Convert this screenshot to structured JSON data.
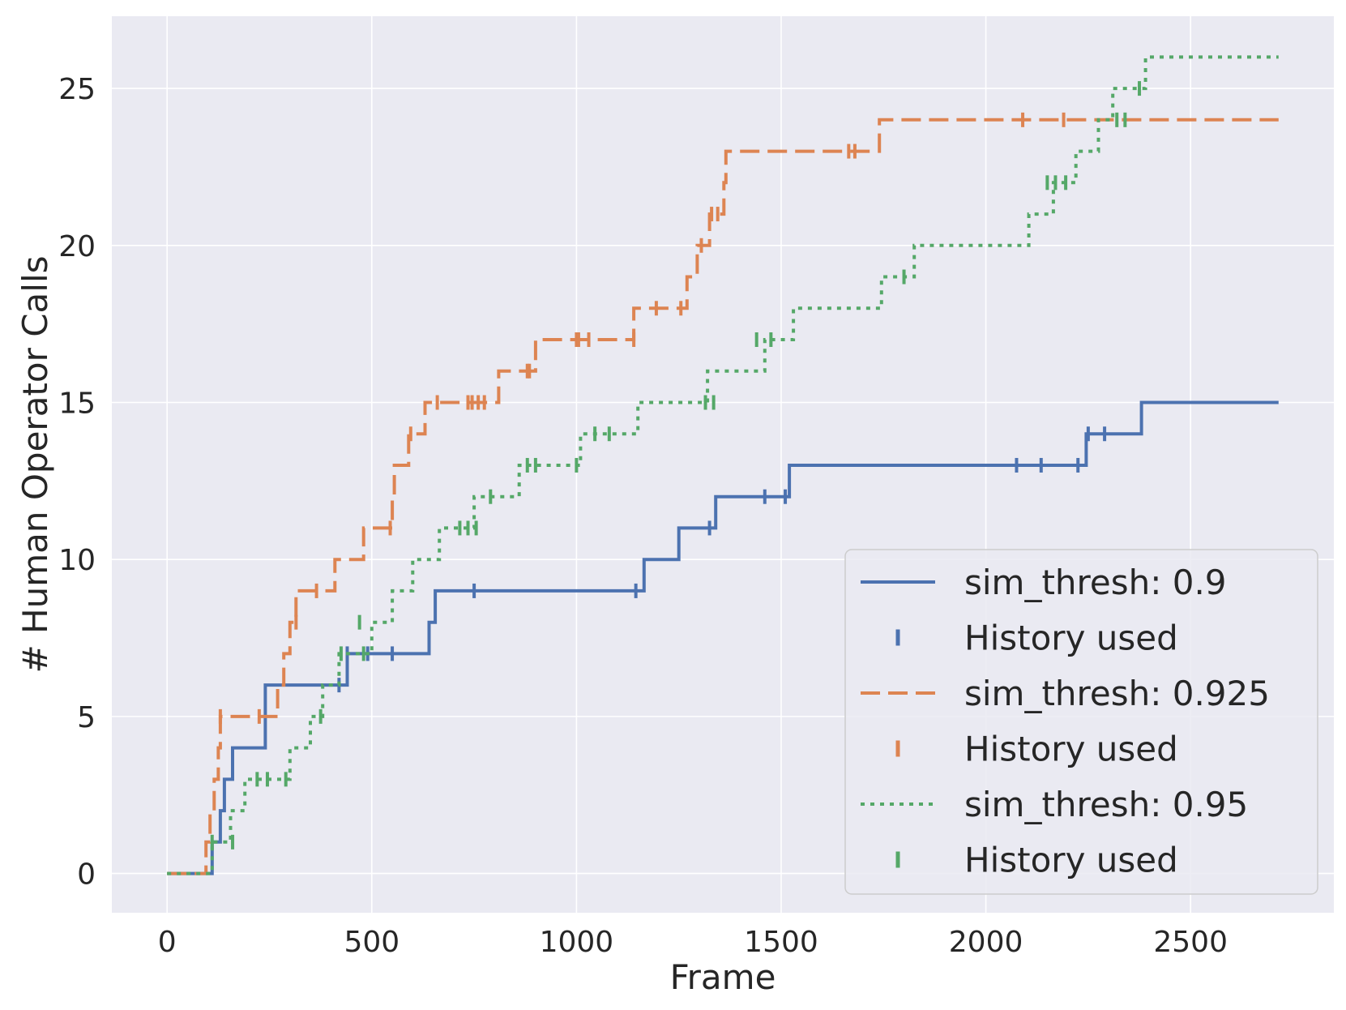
{
  "chart_data": {
    "type": "line",
    "step": true,
    "xlabel": "Frame",
    "ylabel": "# Human Operator Calls",
    "xlim": [
      -135,
      2850
    ],
    "ylim": [
      -1.25,
      27.3
    ],
    "xticks": [
      0,
      500,
      1000,
      1500,
      2000,
      2500
    ],
    "yticks": [
      0,
      5,
      10,
      15,
      20,
      25
    ],
    "xtick_labels": [
      "0",
      "500",
      "1000",
      "1500",
      "2000",
      "2500"
    ],
    "ytick_labels": [
      "0",
      "5",
      "10",
      "15",
      "20",
      "25"
    ],
    "grid": true,
    "legend_position": "lower-right",
    "background": "#eaeaf2",
    "series": [
      {
        "name": "sim_thresh: 0.9",
        "color": "#4c72b0",
        "dash": "solid",
        "points": [
          [
            0,
            0
          ],
          [
            110,
            0
          ],
          [
            110,
            1
          ],
          [
            130,
            1
          ],
          [
            130,
            2
          ],
          [
            140,
            2
          ],
          [
            140,
            3
          ],
          [
            160,
            3
          ],
          [
            160,
            4
          ],
          [
            240,
            4
          ],
          [
            240,
            6
          ],
          [
            440,
            6
          ],
          [
            440,
            7
          ],
          [
            640,
            7
          ],
          [
            640,
            8
          ],
          [
            655,
            8
          ],
          [
            655,
            9
          ],
          [
            1165,
            9
          ],
          [
            1165,
            10
          ],
          [
            1250,
            10
          ],
          [
            1250,
            11
          ],
          [
            1340,
            11
          ],
          [
            1340,
            12
          ],
          [
            1520,
            12
          ],
          [
            1520,
            13
          ],
          [
            2245,
            13
          ],
          [
            2245,
            14
          ],
          [
            2380,
            14
          ],
          [
            2380,
            15
          ],
          [
            2715,
            15
          ]
        ],
        "markers": [
          [
            420,
            6
          ],
          [
            440,
            7
          ],
          [
            490,
            7
          ],
          [
            550,
            7
          ],
          [
            750,
            9
          ],
          [
            1145,
            9
          ],
          [
            1325,
            11
          ],
          [
            1460,
            12
          ],
          [
            1510,
            12
          ],
          [
            2075,
            13
          ],
          [
            2135,
            13
          ],
          [
            2225,
            13
          ],
          [
            2250,
            14
          ],
          [
            2290,
            14
          ]
        ],
        "marker_label": "History used"
      },
      {
        "name": "sim_thresh: 0.925",
        "color": "#dd8452",
        "dash": "dashed",
        "points": [
          [
            0,
            0
          ],
          [
            95,
            0
          ],
          [
            95,
            1
          ],
          [
            105,
            1
          ],
          [
            105,
            2
          ],
          [
            115,
            2
          ],
          [
            115,
            3
          ],
          [
            125,
            3
          ],
          [
            125,
            4
          ],
          [
            130,
            4
          ],
          [
            130,
            5
          ],
          [
            270,
            5
          ],
          [
            270,
            6
          ],
          [
            285,
            6
          ],
          [
            285,
            7
          ],
          [
            300,
            7
          ],
          [
            300,
            8
          ],
          [
            315,
            8
          ],
          [
            315,
            9
          ],
          [
            410,
            9
          ],
          [
            410,
            10
          ],
          [
            480,
            10
          ],
          [
            480,
            11
          ],
          [
            550,
            11
          ],
          [
            550,
            12
          ],
          [
            555,
            12
          ],
          [
            555,
            13
          ],
          [
            590,
            13
          ],
          [
            590,
            14
          ],
          [
            630,
            14
          ],
          [
            630,
            15
          ],
          [
            810,
            15
          ],
          [
            810,
            16
          ],
          [
            900,
            16
          ],
          [
            900,
            17
          ],
          [
            1140,
            17
          ],
          [
            1140,
            18
          ],
          [
            1270,
            18
          ],
          [
            1270,
            19
          ],
          [
            1295,
            19
          ],
          [
            1295,
            20
          ],
          [
            1325,
            20
          ],
          [
            1325,
            21
          ],
          [
            1360,
            21
          ],
          [
            1360,
            22
          ],
          [
            1365,
            22
          ],
          [
            1365,
            23
          ],
          [
            1740,
            23
          ],
          [
            1740,
            24
          ],
          [
            2715,
            24
          ]
        ],
        "markers": [
          [
            130,
            5
          ],
          [
            225,
            5
          ],
          [
            315,
            8
          ],
          [
            365,
            9
          ],
          [
            545,
            11
          ],
          [
            595,
            14
          ],
          [
            660,
            15
          ],
          [
            735,
            15
          ],
          [
            745,
            15
          ],
          [
            760,
            15
          ],
          [
            775,
            15
          ],
          [
            880,
            16
          ],
          [
            885,
            16
          ],
          [
            1000,
            17
          ],
          [
            1005,
            17
          ],
          [
            1030,
            17
          ],
          [
            1140,
            17
          ],
          [
            1195,
            18
          ],
          [
            1255,
            18
          ],
          [
            1305,
            20
          ],
          [
            1330,
            21
          ],
          [
            1345,
            21
          ],
          [
            1665,
            23
          ],
          [
            1680,
            23
          ],
          [
            2090,
            24
          ],
          [
            2190,
            24
          ]
        ],
        "marker_label": "History used"
      },
      {
        "name": "sim_thresh: 0.95",
        "color": "#55a868",
        "dash": "dotted",
        "points": [
          [
            0,
            0
          ],
          [
            110,
            0
          ],
          [
            110,
            1
          ],
          [
            155,
            1
          ],
          [
            155,
            2
          ],
          [
            190,
            2
          ],
          [
            190,
            3
          ],
          [
            300,
            3
          ],
          [
            300,
            4
          ],
          [
            350,
            4
          ],
          [
            350,
            5
          ],
          [
            380,
            5
          ],
          [
            380,
            6
          ],
          [
            420,
            6
          ],
          [
            420,
            7
          ],
          [
            500,
            7
          ],
          [
            500,
            8
          ],
          [
            550,
            8
          ],
          [
            550,
            9
          ],
          [
            600,
            9
          ],
          [
            600,
            10
          ],
          [
            665,
            10
          ],
          [
            665,
            11
          ],
          [
            750,
            11
          ],
          [
            750,
            12
          ],
          [
            860,
            12
          ],
          [
            860,
            13
          ],
          [
            1010,
            13
          ],
          [
            1010,
            14
          ],
          [
            1150,
            14
          ],
          [
            1150,
            15
          ],
          [
            1320,
            15
          ],
          [
            1320,
            16
          ],
          [
            1460,
            16
          ],
          [
            1460,
            17
          ],
          [
            1530,
            17
          ],
          [
            1530,
            18
          ],
          [
            1745,
            18
          ],
          [
            1745,
            19
          ],
          [
            1825,
            19
          ],
          [
            1825,
            20
          ],
          [
            2105,
            20
          ],
          [
            2105,
            21
          ],
          [
            2165,
            21
          ],
          [
            2165,
            22
          ],
          [
            2220,
            22
          ],
          [
            2220,
            23
          ],
          [
            2275,
            23
          ],
          [
            2275,
            24
          ],
          [
            2310,
            24
          ],
          [
            2310,
            25
          ],
          [
            2390,
            25
          ],
          [
            2390,
            26
          ],
          [
            2715,
            26
          ]
        ],
        "markers": [
          [
            110,
            1
          ],
          [
            160,
            1
          ],
          [
            220,
            3
          ],
          [
            245,
            3
          ],
          [
            290,
            3
          ],
          [
            375,
            5
          ],
          [
            425,
            7
          ],
          [
            470,
            8
          ],
          [
            480,
            7
          ],
          [
            715,
            11
          ],
          [
            735,
            11
          ],
          [
            755,
            11
          ],
          [
            790,
            12
          ],
          [
            880,
            13
          ],
          [
            900,
            13
          ],
          [
            1000,
            13
          ],
          [
            1045,
            14
          ],
          [
            1080,
            14
          ],
          [
            1315,
            15
          ],
          [
            1335,
            15
          ],
          [
            1440,
            17
          ],
          [
            1475,
            17
          ],
          [
            1800,
            19
          ],
          [
            2150,
            22
          ],
          [
            2170,
            22
          ],
          [
            2195,
            22
          ],
          [
            2320,
            24
          ],
          [
            2340,
            24
          ],
          [
            2375,
            25
          ]
        ],
        "marker_label": "History used"
      }
    ]
  }
}
